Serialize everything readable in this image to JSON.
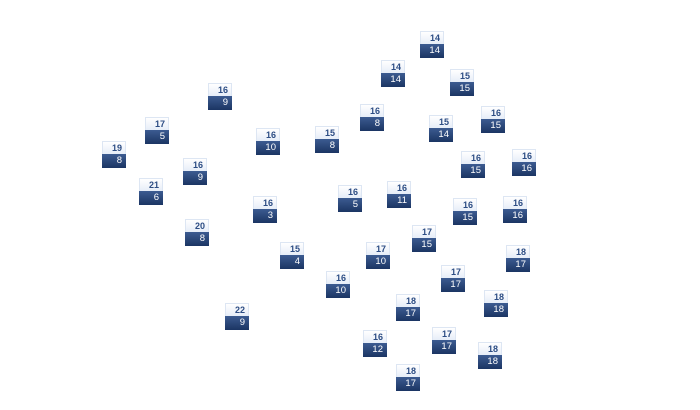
{
  "colors": {
    "top_bg": "#eef3fa",
    "top_text": "#2d4d84",
    "bottom_bg": "#24406f",
    "bottom_text": "#ffffff"
  },
  "nodes": [
    {
      "top": "14",
      "bottom": "14"
    },
    {
      "top": "14",
      "bottom": "14"
    },
    {
      "top": "15",
      "bottom": "15"
    },
    {
      "top": "16",
      "bottom": "9"
    },
    {
      "top": "17",
      "bottom": "5"
    },
    {
      "top": "16",
      "bottom": "8"
    },
    {
      "top": "16",
      "bottom": "15"
    },
    {
      "top": "15",
      "bottom": "14"
    },
    {
      "top": "16",
      "bottom": "10"
    },
    {
      "top": "15",
      "bottom": "8"
    },
    {
      "top": "19",
      "bottom": "8"
    },
    {
      "top": "16",
      "bottom": "16"
    },
    {
      "top": "16",
      "bottom": "15"
    },
    {
      "top": "16",
      "bottom": "9"
    },
    {
      "top": "21",
      "bottom": "6"
    },
    {
      "top": "16",
      "bottom": "11"
    },
    {
      "top": "16",
      "bottom": "5"
    },
    {
      "top": "16",
      "bottom": "3"
    },
    {
      "top": "16",
      "bottom": "15"
    },
    {
      "top": "16",
      "bottom": "16"
    },
    {
      "top": "20",
      "bottom": "8"
    },
    {
      "top": "17",
      "bottom": "15"
    },
    {
      "top": "15",
      "bottom": "4"
    },
    {
      "top": "17",
      "bottom": "10"
    },
    {
      "top": "18",
      "bottom": "17"
    },
    {
      "top": "17",
      "bottom": "17"
    },
    {
      "top": "16",
      "bottom": "10"
    },
    {
      "top": "18",
      "bottom": "18"
    },
    {
      "top": "18",
      "bottom": "17"
    },
    {
      "top": "22",
      "bottom": "9"
    },
    {
      "top": "17",
      "bottom": "17"
    },
    {
      "top": "16",
      "bottom": "12"
    },
    {
      "top": "18",
      "bottom": "18"
    },
    {
      "top": "18",
      "bottom": "17"
    }
  ]
}
